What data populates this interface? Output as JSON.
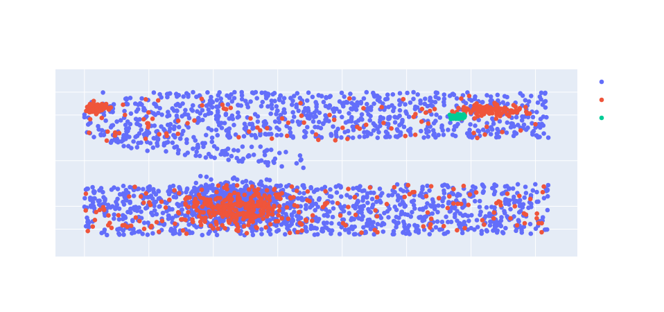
{
  "chart_data": {
    "type": "scatter",
    "title": "",
    "xlabel": "",
    "ylabel": "",
    "xlim": [
      -0.45,
      7.65
    ],
    "ylim": [
      -0.05,
      4.05
    ],
    "xgrid": [
      0,
      1,
      2,
      3,
      4,
      5,
      6,
      7
    ],
    "ygrid": [
      0.55,
      1.05,
      2.05,
      3.05,
      3.55
    ],
    "grid": true,
    "legend": "right",
    "plot_background": "#e5ecf6",
    "series": [
      {
        "name": "",
        "color": "#636efa",
        "regions": [
          {
            "shape": "band",
            "x0": 0.0,
            "x1": 7.2,
            "y_center_start": 3.05,
            "y_center_end": 3.05,
            "half_height": 0.5,
            "count": 780
          },
          {
            "shape": "band",
            "x0": 0.0,
            "x1": 7.2,
            "y_center_start": 0.95,
            "y_center_end": 1.0,
            "half_height": 0.55,
            "count": 980
          },
          {
            "shape": "cloud",
            "cx": 2.4,
            "cy": 1.1,
            "rx": 1.4,
            "ry": 0.7,
            "count": 620
          },
          {
            "shape": "band",
            "x0": 0.4,
            "x1": 3.4,
            "y_center_start": 2.55,
            "y_center_end": 2.05,
            "half_height": 0.2,
            "count": 120
          }
        ]
      },
      {
        "name": "",
        "color": "#ef553b",
        "regions": [
          {
            "shape": "cloud",
            "cx": 0.2,
            "cy": 3.2,
            "rx": 0.25,
            "ry": 0.18,
            "count": 70
          },
          {
            "shape": "cloud",
            "cx": 6.3,
            "cy": 3.15,
            "rx": 0.85,
            "ry": 0.2,
            "count": 110
          },
          {
            "shape": "cloud",
            "cx": 2.4,
            "cy": 1.0,
            "rx": 1.3,
            "ry": 0.6,
            "count": 260
          },
          {
            "shape": "band",
            "x0": 0.0,
            "x1": 7.2,
            "y_center_start": 2.95,
            "y_center_end": 3.0,
            "half_height": 0.5,
            "count": 90
          },
          {
            "shape": "band",
            "x0": 0.0,
            "x1": 7.2,
            "y_center_start": 0.95,
            "y_center_end": 1.0,
            "half_height": 0.55,
            "count": 160
          }
        ]
      },
      {
        "name": "",
        "color": "#00cc96",
        "regions": [
          {
            "shape": "cloud",
            "cx": 5.82,
            "cy": 3.02,
            "rx": 0.22,
            "ry": 0.09,
            "count": 60
          }
        ]
      }
    ]
  }
}
